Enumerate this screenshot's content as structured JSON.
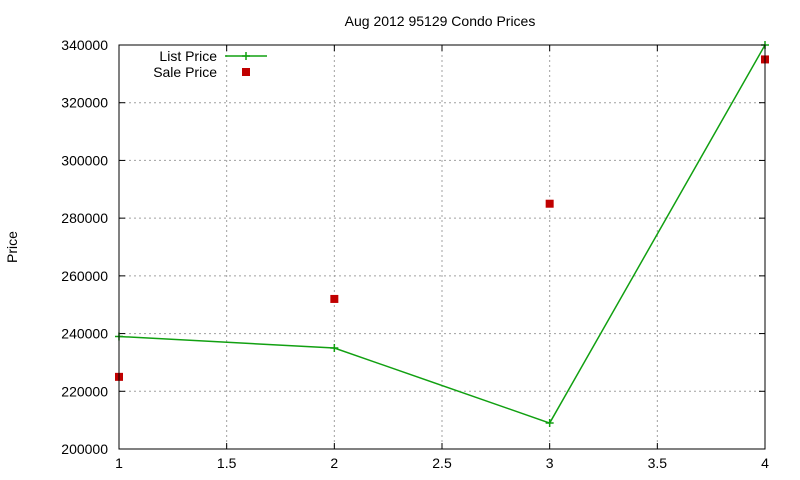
{
  "chart_data": {
    "type": "line",
    "title": "Aug 2012 95129 Condo Prices",
    "xlabel": "",
    "ylabel": "Price",
    "xlim": [
      1,
      4
    ],
    "ylim": [
      200000,
      340000
    ],
    "x_ticks": [
      1,
      1.5,
      2,
      2.5,
      3,
      3.5,
      4
    ],
    "x_tick_labels": [
      "1",
      "1.5",
      "2",
      "2.5",
      "3",
      "3.5",
      "4"
    ],
    "y_ticks": [
      200000,
      220000,
      240000,
      260000,
      280000,
      300000,
      320000,
      340000
    ],
    "y_tick_labels": [
      "200000",
      "220000",
      "240000",
      "260000",
      "280000",
      "300000",
      "320000",
      "340000"
    ],
    "grid": true,
    "legend_position": "top-left",
    "series": [
      {
        "name": "List Price",
        "style": "linespoints",
        "marker": "plus",
        "color": "#11a011",
        "x": [
          1,
          2,
          3,
          4
        ],
        "y": [
          239000,
          235000,
          209000,
          340000
        ]
      },
      {
        "name": "Sale Price",
        "style": "points",
        "marker": "square",
        "color": "#c00000",
        "x": [
          1,
          2,
          3,
          4
        ],
        "y": [
          225000,
          252000,
          285000,
          335000
        ]
      }
    ]
  }
}
